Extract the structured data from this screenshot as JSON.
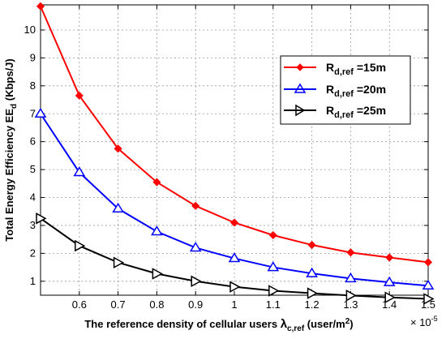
{
  "chart_data": {
    "type": "line",
    "x": [
      0.5,
      0.6,
      0.7,
      0.8,
      0.9,
      1.0,
      1.1,
      1.2,
      1.3,
      1.4,
      1.5
    ],
    "x_ticks": [
      "0.6",
      "0.7",
      "0.8",
      "0.9",
      "1",
      "1.1",
      "1.2",
      "1.3",
      "1.4",
      "1.5"
    ],
    "y_ticks": [
      "1",
      "2",
      "3",
      "4",
      "5",
      "6",
      "7",
      "8",
      "9",
      "10"
    ],
    "xlim": [
      0.5,
      1.5
    ],
    "ylim": [
      0.5,
      10.9
    ],
    "x_exponent": "× 10",
    "x_exponent_power": "-5",
    "xlabel": {
      "pre": "The reference density of cellular users ",
      "symbol": "λ",
      "sub": "c,ref",
      "mid": " (user/m",
      "sup": "2",
      "post": ")"
    },
    "ylabel": {
      "pre": "Total Energy Efficiency EE",
      "sub": "d",
      "post": " (Kbps/J)"
    },
    "grid": true,
    "legend_position": "top-right",
    "series": [
      {
        "label_main": "R",
        "label_sub": "d,ref",
        "label_post": " =15m",
        "color": "#ff0000",
        "marker": "diamond",
        "values": [
          10.85,
          7.65,
          5.75,
          4.55,
          3.7,
          3.1,
          2.65,
          2.3,
          2.03,
          1.85,
          1.68
        ]
      },
      {
        "label_main": "R",
        "label_sub": "d,ref",
        "label_post": " =20m",
        "color": "#0000ff",
        "marker": "triangle-up",
        "values": [
          7.0,
          4.9,
          3.6,
          2.78,
          2.2,
          1.82,
          1.5,
          1.28,
          1.1,
          0.96,
          0.84
        ]
      },
      {
        "label_main": "R",
        "label_sub": "d,ref",
        "label_post": " =25m",
        "color": "#000000",
        "marker": "triangle-right",
        "values": [
          3.25,
          2.27,
          1.67,
          1.27,
          1.0,
          0.8,
          0.66,
          0.57,
          0.49,
          0.42,
          0.37
        ]
      }
    ]
  }
}
